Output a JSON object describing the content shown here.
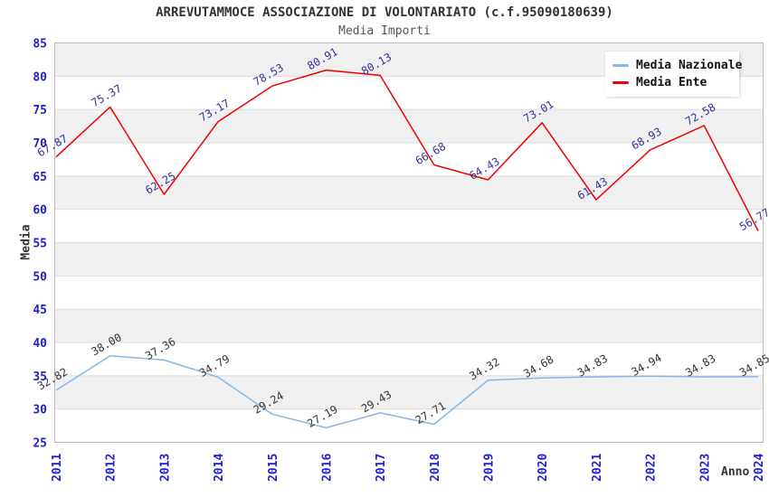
{
  "header": {
    "title": "ARREVUTAMMOCE ASSOCIAZIONE DI VOLONTARIATO (c.f.95090180639)",
    "subtitle": "Media Importi"
  },
  "chart_data": {
    "type": "line",
    "title": "ARREVUTAMMOCE ASSOCIAZIONE DI VOLONTARIATO (c.f.95090180639)",
    "subtitle": "Media Importi",
    "xlabel": "Anno",
    "ylabel": "Media",
    "categories": [
      "2011",
      "2012",
      "2013",
      "2014",
      "2015",
      "2016",
      "2017",
      "2018",
      "2019",
      "2020",
      "2021",
      "2022",
      "2023",
      "2024"
    ],
    "series": [
      {
        "name": "Media Nazionale",
        "color": "#86b7e7",
        "label_color": "#333333",
        "values": [
          32.82,
          38.0,
          37.36,
          34.79,
          29.24,
          27.19,
          29.43,
          27.71,
          34.32,
          34.68,
          34.83,
          34.94,
          34.83,
          34.85
        ]
      },
      {
        "name": "Media Ente",
        "color": "#ee0000",
        "label_color": "#333399",
        "values": [
          67.87,
          75.37,
          62.25,
          73.17,
          78.53,
          80.91,
          80.13,
          66.68,
          64.43,
          73.01,
          61.43,
          68.93,
          72.58,
          56.77
        ]
      }
    ],
    "ylim": [
      25,
      85
    ],
    "ytick_step": 5,
    "grid": "horizontal-alternating-bands",
    "legend_position": "top-right",
    "colors": {
      "tick_label": "#2020d0",
      "band_gray": "#f0f0f0",
      "grid_line": "#dddddd",
      "plot_border": "#bbbbbb",
      "title": "#333333",
      "subtitle": "#555555"
    }
  }
}
